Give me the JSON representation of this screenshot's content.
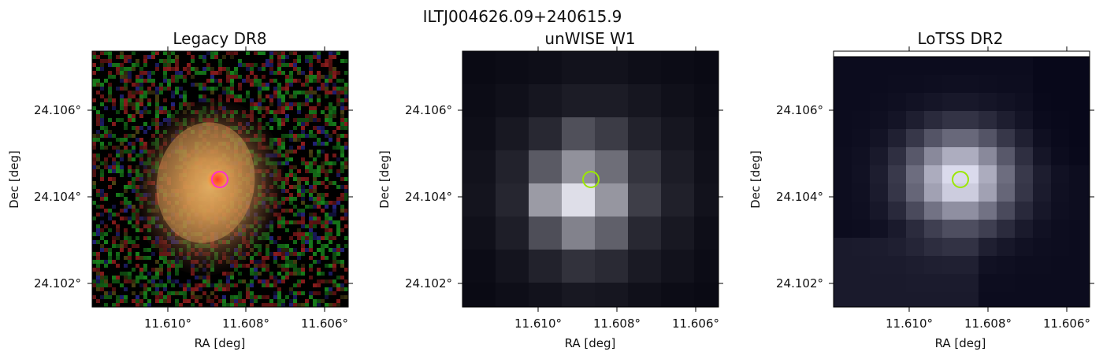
{
  "figure": {
    "title": "ILTJ004626.09+240615.9"
  },
  "panels": [
    {
      "id": "legacy",
      "title": "Legacy DR8",
      "image": "legacy-dr8-color-cutout",
      "xlabel": "RA [deg]",
      "ylabel": "Dec [deg]",
      "x_ticks": [
        "11.610°",
        "11.608°",
        "11.606°"
      ],
      "y_ticks": [
        "24.106°",
        "24.104°",
        "24.102°"
      ],
      "marker_color": "#e040fb"
    },
    {
      "id": "unwise",
      "title": "unWISE W1",
      "image": "unwise-w1-grayscale-cutout",
      "xlabel": "RA [deg]",
      "ylabel": "Dec [deg]",
      "x_ticks": [
        "11.610°",
        "11.608°",
        "11.606°"
      ],
      "y_ticks": [
        "24.106°",
        "24.104°",
        "24.102°"
      ],
      "marker_color": "#9be800"
    },
    {
      "id": "lotss",
      "title": "LoTSS DR2",
      "image": "lotss-dr2-radio-cutout",
      "xlabel": "RA [deg]",
      "ylabel": "Dec [deg]",
      "x_ticks": [
        "11.610°",
        "11.608°",
        "11.606°"
      ],
      "y_ticks": [
        "24.106°",
        "24.104°",
        "24.102°"
      ],
      "marker_color": "#9be800"
    }
  ]
}
